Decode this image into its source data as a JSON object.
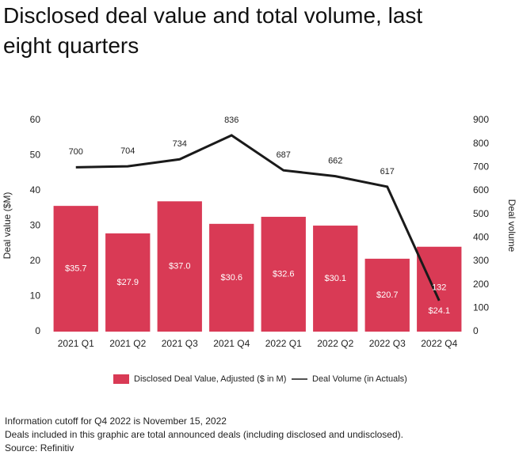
{
  "chart_data": {
    "type": "bar_line",
    "title": "Disclosed deal value and total volume, last eight quarters",
    "y_label": "Deal value ($M)",
    "y2_label": "Deal volume",
    "categories": [
      "2021 Q1",
      "2021 Q2",
      "2021 Q3",
      "2021 Q4",
      "2022 Q1",
      "2022 Q2",
      "2022 Q3",
      "2022 Q4"
    ],
    "series": [
      {
        "name": "Disclosed Deal Value, Adjusted ($ in M)",
        "type": "bar",
        "color": "#d93a55",
        "values": [
          35.7,
          27.9,
          37.0,
          30.6,
          32.6,
          30.1,
          20.7,
          24.1
        ],
        "value_labels": [
          "$35.7",
          "$27.9",
          "$37.0",
          "$30.6",
          "$32.6",
          "$30.1",
          "$20.7",
          "$24.1"
        ]
      },
      {
        "name": "Deal Volume (in Actuals)",
        "type": "line",
        "axis": "y2",
        "color": "#1a1a1a",
        "values": [
          700,
          704,
          734,
          836,
          687,
          662,
          617,
          132
        ]
      }
    ],
    "ylim": [
      0,
      60
    ],
    "yticks": [
      0,
      10,
      20,
      30,
      40,
      50,
      60
    ],
    "y2lim": [
      0,
      900
    ],
    "y2ticks": [
      0,
      100,
      200,
      300,
      400,
      500,
      600,
      700,
      800,
      900
    ],
    "grid": false,
    "legend": "bottom",
    "notes": [
      "Information cutoff for Q4 2022 is November 15, 2022",
      "Deals included in this graphic are total announced deals (including disclosed and undisclosed).",
      "Source: Refinitiv"
    ]
  }
}
